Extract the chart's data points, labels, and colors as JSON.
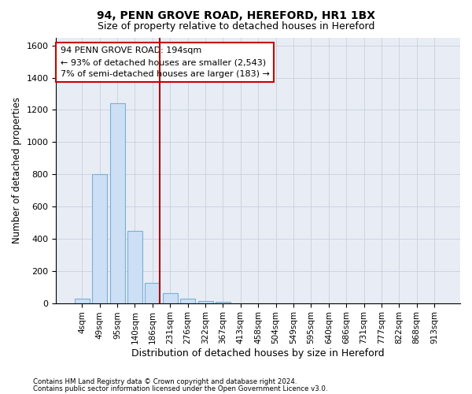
{
  "title1": "94, PENN GROVE ROAD, HEREFORD, HR1 1BX",
  "title2": "Size of property relative to detached houses in Hereford",
  "xlabel": "Distribution of detached houses by size in Hereford",
  "ylabel": "Number of detached properties",
  "categories": [
    "4sqm",
    "49sqm",
    "95sqm",
    "140sqm",
    "186sqm",
    "231sqm",
    "276sqm",
    "322sqm",
    "367sqm",
    "413sqm",
    "458sqm",
    "504sqm",
    "549sqm",
    "595sqm",
    "640sqm",
    "686sqm",
    "731sqm",
    "777sqm",
    "822sqm",
    "868sqm",
    "913sqm"
  ],
  "bar_values": [
    25,
    800,
    1240,
    450,
    125,
    60,
    25,
    15,
    10,
    0,
    0,
    0,
    0,
    0,
    0,
    0,
    0,
    0,
    0,
    0,
    0
  ],
  "bar_color": "#ccdff5",
  "bar_edge_color": "#7aafd4",
  "grid_color": "#c8d0de",
  "bg_color": "#e8edf5",
  "vline_color": "#aa0000",
  "ylim": [
    0,
    1650
  ],
  "yticks": [
    0,
    200,
    400,
    600,
    800,
    1000,
    1200,
    1400,
    1600
  ],
  "annotation_line1": "94 PENN GROVE ROAD: 194sqm",
  "annotation_line2": "← 93% of detached houses are smaller (2,543)",
  "annotation_line3": "7% of semi-detached houses are larger (183) →",
  "footer1": "Contains HM Land Registry data © Crown copyright and database right 2024.",
  "footer2": "Contains public sector information licensed under the Open Government Licence v3.0."
}
